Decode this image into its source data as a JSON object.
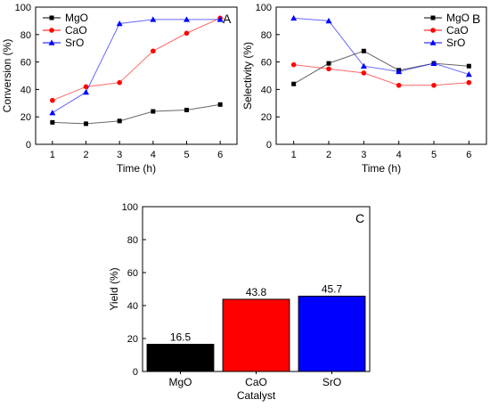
{
  "chart_data": [
    {
      "type": "line",
      "panel_label": "A",
      "x": [
        1,
        2,
        3,
        4,
        5,
        6
      ],
      "xlabel": "Time (h)",
      "ylabel": "Conversion (%)",
      "xlim": [
        0.5,
        6.5
      ],
      "ylim": [
        0,
        100
      ],
      "xticks": [
        1,
        2,
        3,
        4,
        5,
        6
      ],
      "yticks": [
        0,
        20,
        40,
        60,
        80,
        100
      ],
      "legend_position": "top-left",
      "series": [
        {
          "name": "MgO",
          "color": "#000000",
          "marker": "square",
          "values": [
            16,
            15,
            17,
            24,
            25,
            29
          ]
        },
        {
          "name": "CaO",
          "color": "#ff0000",
          "marker": "circle",
          "values": [
            32,
            42,
            45,
            68,
            81,
            92
          ]
        },
        {
          "name": "SrO",
          "color": "#0000ff",
          "marker": "triangle",
          "values": [
            23,
            38,
            88,
            91,
            91,
            91
          ]
        }
      ]
    },
    {
      "type": "line",
      "panel_label": "B",
      "x": [
        1,
        2,
        3,
        4,
        5,
        6
      ],
      "xlabel": "Time (h)",
      "ylabel": "Selectivity (%)",
      "xlim": [
        0.5,
        6.5
      ],
      "ylim": [
        0,
        100
      ],
      "xticks": [
        1,
        2,
        3,
        4,
        5,
        6
      ],
      "yticks": [
        0,
        20,
        40,
        60,
        80,
        100
      ],
      "legend_position": "top-right",
      "series": [
        {
          "name": "MgO",
          "color": "#000000",
          "marker": "square",
          "values": [
            44,
            59,
            68,
            54,
            59,
            57
          ]
        },
        {
          "name": "CaO",
          "color": "#ff0000",
          "marker": "circle",
          "values": [
            58,
            55,
            52,
            43,
            43,
            45
          ]
        },
        {
          "name": "SrO",
          "color": "#0000ff",
          "marker": "triangle",
          "values": [
            92,
            90,
            57,
            53,
            59,
            51
          ]
        }
      ]
    },
    {
      "type": "bar",
      "panel_label": "C",
      "categories": [
        "MgO",
        "CaO",
        "SrO"
      ],
      "values": [
        16.5,
        43.8,
        45.7
      ],
      "value_labels": [
        "16.5",
        "43.8",
        "45.7"
      ],
      "colors": [
        "#000000",
        "#ff0000",
        "#0000ff"
      ],
      "xlabel": "Catalyst",
      "ylabel": "Yield (%)",
      "ylim": [
        0,
        100
      ],
      "yticks": [
        0,
        20,
        40,
        60,
        80,
        100
      ]
    }
  ]
}
